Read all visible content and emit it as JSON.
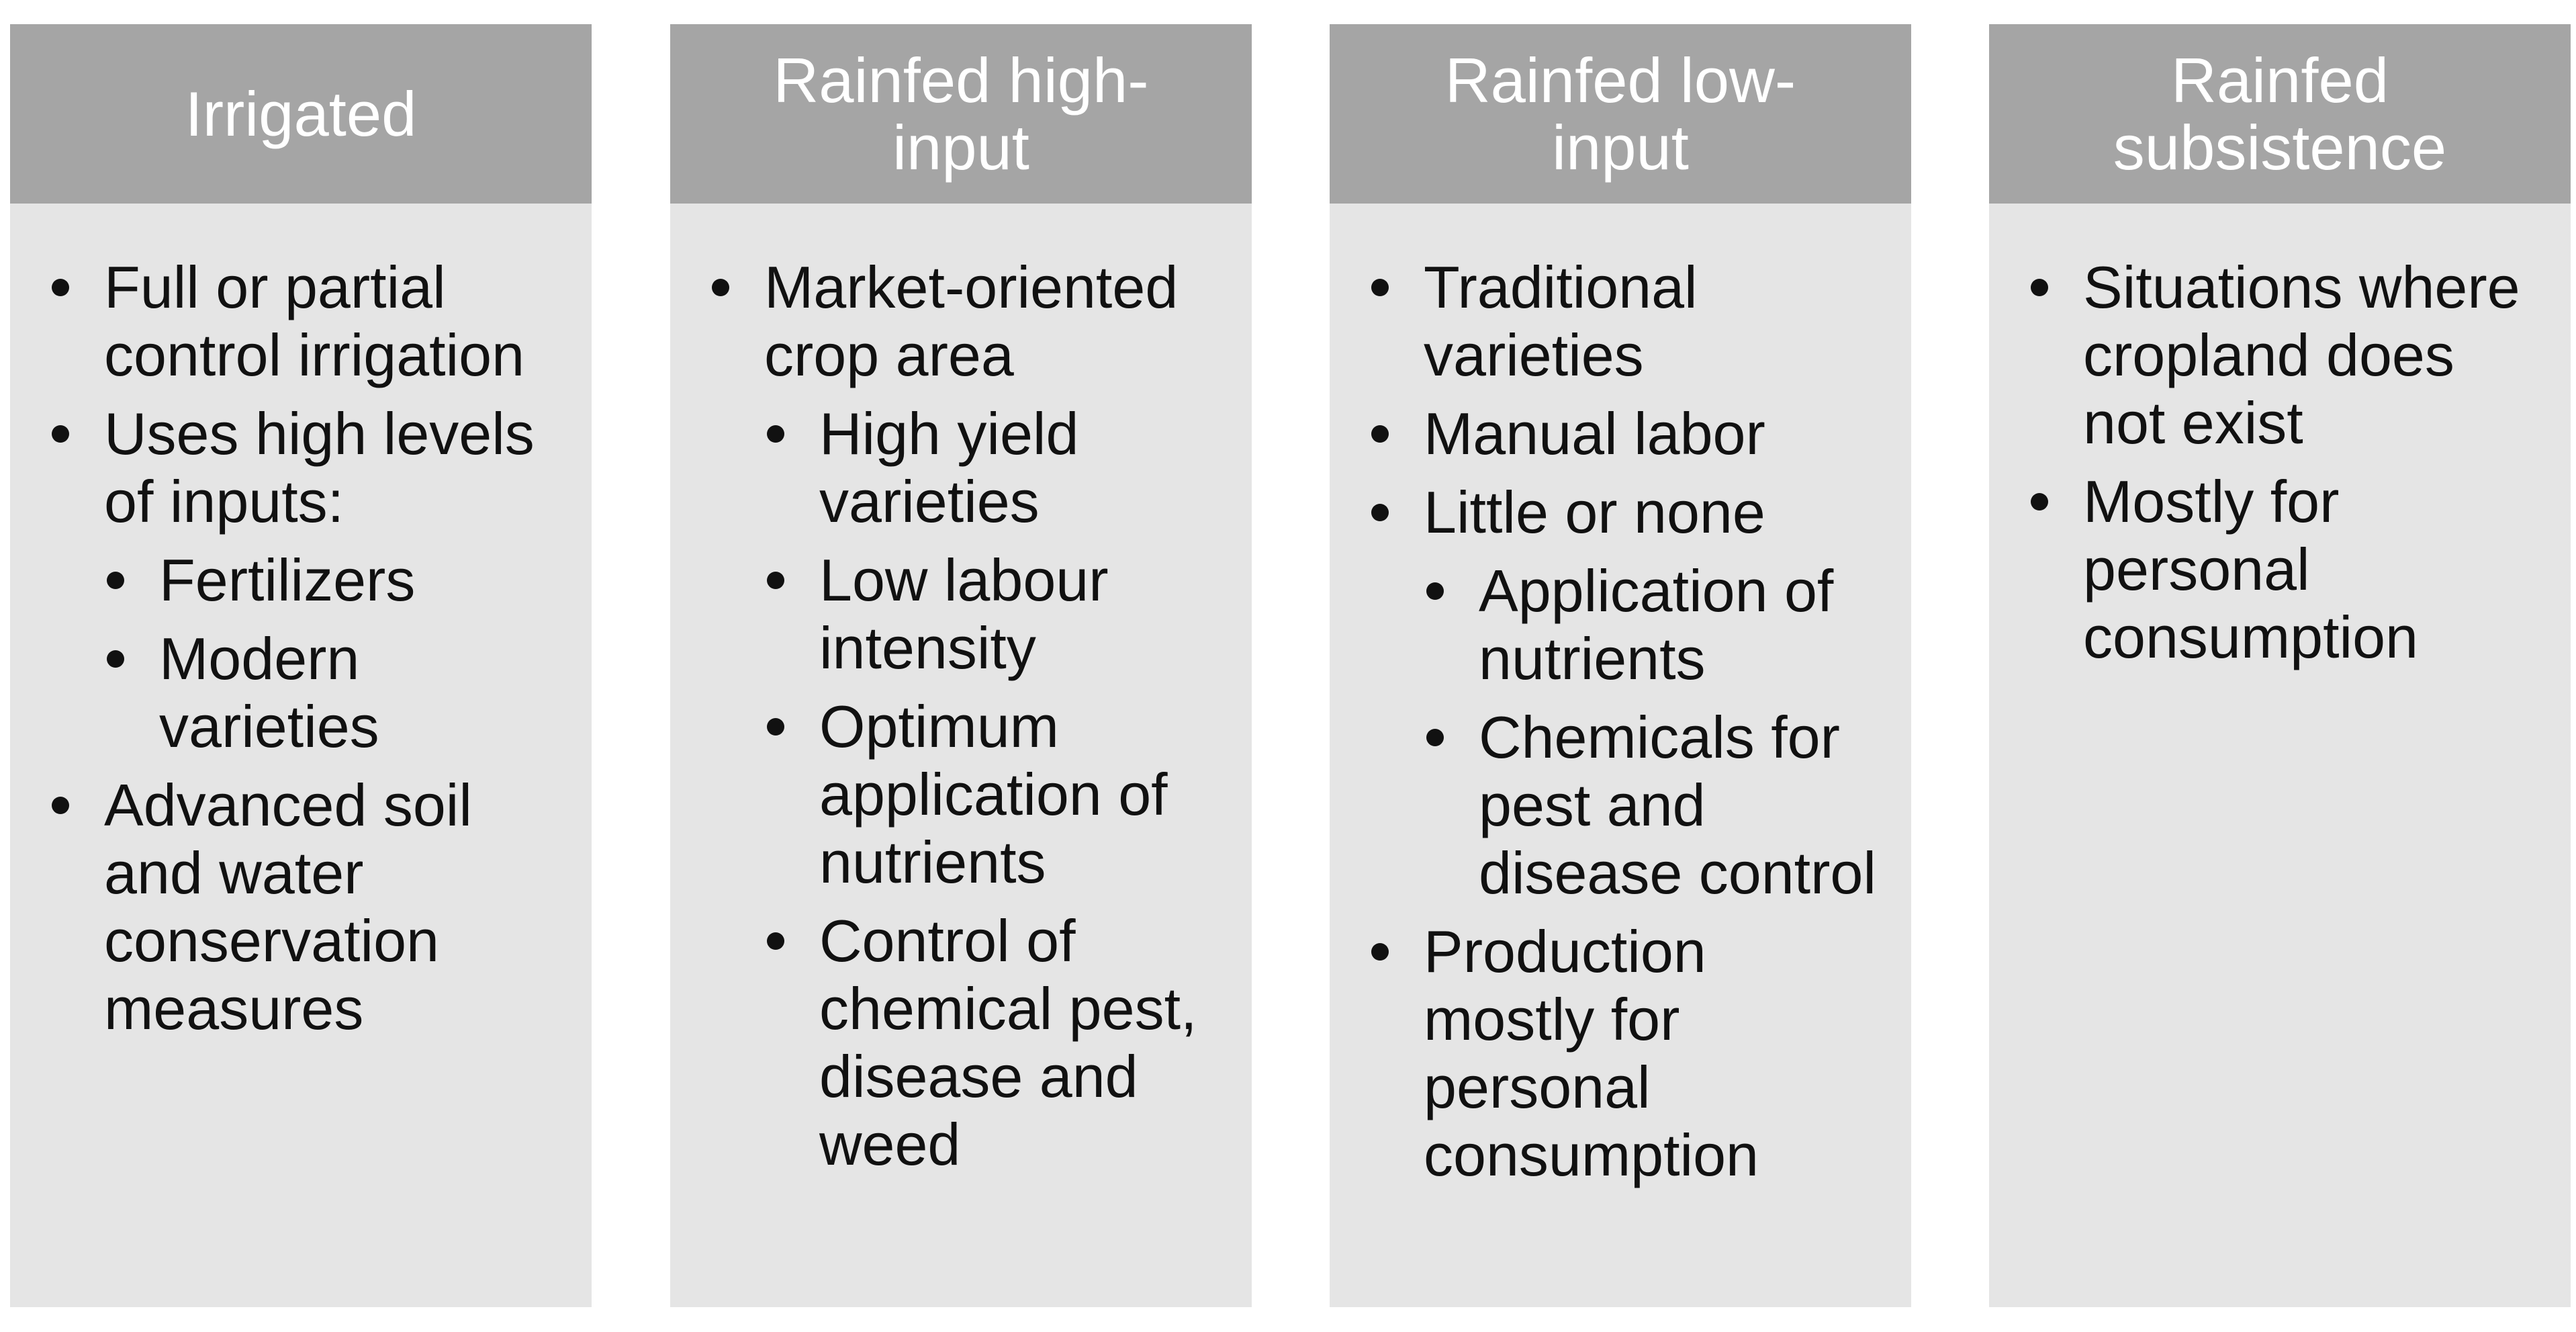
{
  "columns": [
    {
      "header": "Irrigated",
      "items": [
        {
          "text": "Full or partial control irrigation"
        },
        {
          "text": "Uses high levels of inputs:",
          "children": [
            "Fertilizers",
            "Modern varieties"
          ]
        },
        {
          "text": "Advanced soil and water conservation measures"
        }
      ]
    },
    {
      "header": "Rainfed high-input",
      "items": [
        {
          "text": "Market-oriented crop area",
          "children": [
            "High yield varieties",
            "Low labour intensity",
            "Optimum application of nutrients",
            "Control of chemical pest, disease and weed"
          ]
        }
      ]
    },
    {
      "header": "Rainfed low-input",
      "items": [
        {
          "text": "Traditional varieties"
        },
        {
          "text": "Manual labor"
        },
        {
          "text": "Little or none",
          "children": [
            "Application of nutrients",
            "Chemicals for pest and disease control"
          ]
        },
        {
          "text": "Production mostly for personal consumption"
        }
      ]
    },
    {
      "header": "Rainfed subsistence",
      "items": [
        {
          "text": "Situations where cropland does not exist"
        },
        {
          "text": "Mostly for personal consumption"
        }
      ]
    }
  ]
}
